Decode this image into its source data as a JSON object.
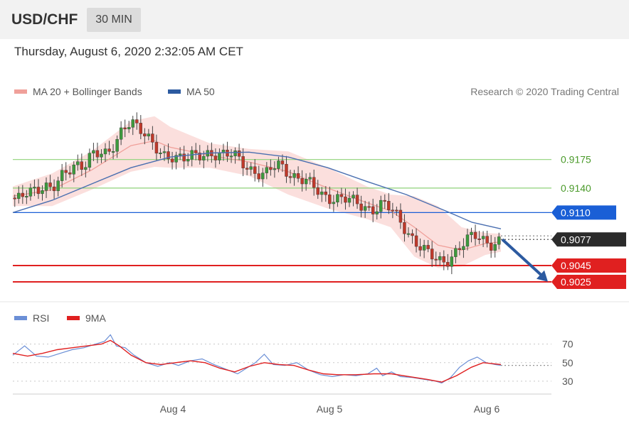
{
  "header": {
    "symbol": "USD/CHF",
    "interval": "30 MIN",
    "datetime": "Thursday, August 6, 2020 2:32:05 AM CET"
  },
  "legend": {
    "ma20_label": "MA 20 + Bollinger Bands",
    "ma50_label": "MA 50",
    "copyright": "Research © 2020 Trading Central",
    "rsi_label": "RSI",
    "rsi_ma_label": "9MA"
  },
  "colors": {
    "band_fill": "#f9d4d2",
    "ma20": "#f0a09a",
    "ma50": "#4a6fb0",
    "candle_up": "#3d9a3d",
    "candle_down": "#c0392b",
    "resistance": "#8fd27a",
    "pivot": "#1a5fd6",
    "support": "#e02020",
    "current": "#2b2b2b",
    "rsi": "#6b8fd6",
    "rsi_ma": "#e02020",
    "arrow": "#2c5aa0"
  },
  "chart_data": [
    {
      "type": "candlestick",
      "name": "price",
      "x_labels": [
        "Aug 4",
        "Aug 5",
        "Aug 6"
      ],
      "y_range": [
        0.9005,
        0.924
      ],
      "resistance_levels": [
        "0.9175",
        "0.9140"
      ],
      "pivot_level": "0.9110",
      "current_price": "0.9077",
      "support_levels": [
        "0.9045",
        "0.9025"
      ],
      "price_path": [
        [
          0,
          0.9128
        ],
        [
          6,
          0.9124
        ],
        [
          12,
          0.9133
        ],
        [
          18,
          0.9137
        ],
        [
          24,
          0.9148
        ],
        [
          30,
          0.9141
        ],
        [
          36,
          0.915
        ],
        [
          42,
          0.9156
        ],
        [
          48,
          0.9168
        ],
        [
          54,
          0.9171
        ],
        [
          60,
          0.9186
        ],
        [
          66,
          0.9181
        ],
        [
          72,
          0.9176
        ],
        [
          78,
          0.9193
        ],
        [
          84,
          0.9218
        ],
        [
          90,
          0.9226
        ],
        [
          96,
          0.9212
        ],
        [
          102,
          0.9198
        ],
        [
          108,
          0.919
        ],
        [
          114,
          0.9184
        ],
        [
          120,
          0.9182
        ],
        [
          126,
          0.9176
        ],
        [
          132,
          0.9172
        ],
        [
          138,
          0.9179
        ],
        [
          144,
          0.9183
        ],
        [
          150,
          0.9186
        ],
        [
          156,
          0.918
        ],
        [
          162,
          0.9177
        ],
        [
          168,
          0.918
        ],
        [
          174,
          0.9176
        ],
        [
          180,
          0.9167
        ],
        [
          186,
          0.9158
        ],
        [
          192,
          0.9152
        ],
        [
          198,
          0.9164
        ],
        [
          204,
          0.9171
        ],
        [
          210,
          0.9162
        ],
        [
          216,
          0.9153
        ],
        [
          222,
          0.9147
        ],
        [
          228,
          0.9141
        ],
        [
          234,
          0.9135
        ],
        [
          240,
          0.9131
        ],
        [
          246,
          0.9129
        ],
        [
          252,
          0.9125
        ],
        [
          258,
          0.9122
        ],
        [
          264,
          0.912
        ],
        [
          270,
          0.9118
        ],
        [
          276,
          0.9116
        ],
        [
          282,
          0.912
        ],
        [
          288,
          0.9112
        ],
        [
          294,
          0.9102
        ],
        [
          300,
          0.909
        ],
        [
          306,
          0.9078
        ],
        [
          312,
          0.9065
        ],
        [
          318,
          0.9055
        ],
        [
          324,
          0.9049
        ],
        [
          330,
          0.9052
        ],
        [
          336,
          0.9062
        ],
        [
          342,
          0.907
        ],
        [
          348,
          0.9076
        ],
        [
          354,
          0.908
        ],
        [
          360,
          0.9076
        ],
        [
          366,
          0.9074
        ],
        [
          372,
          0.9077
        ]
      ],
      "ma20_path": [
        [
          0,
          0.913
        ],
        [
          30,
          0.9138
        ],
        [
          60,
          0.9162
        ],
        [
          90,
          0.9192
        ],
        [
          108,
          0.9198
        ],
        [
          120,
          0.919
        ],
        [
          150,
          0.918
        ],
        [
          180,
          0.9172
        ],
        [
          210,
          0.916
        ],
        [
          240,
          0.914
        ],
        [
          270,
          0.9122
        ],
        [
          288,
          0.9112
        ],
        [
          306,
          0.9092
        ],
        [
          324,
          0.907
        ],
        [
          342,
          0.9064
        ],
        [
          360,
          0.9072
        ],
        [
          372,
          0.9074
        ]
      ],
      "band_upper_path": [
        [
          0,
          0.9142
        ],
        [
          30,
          0.9158
        ],
        [
          60,
          0.9185
        ],
        [
          90,
          0.9222
        ],
        [
          108,
          0.9228
        ],
        [
          120,
          0.9215
        ],
        [
          150,
          0.9195
        ],
        [
          180,
          0.9188
        ],
        [
          210,
          0.9185
        ],
        [
          240,
          0.9165
        ],
        [
          270,
          0.9142
        ],
        [
          288,
          0.9132
        ],
        [
          306,
          0.913
        ],
        [
          324,
          0.9118
        ],
        [
          342,
          0.9092
        ],
        [
          360,
          0.9085
        ],
        [
          372,
          0.9084
        ]
      ],
      "band_lower_path": [
        [
          0,
          0.9118
        ],
        [
          30,
          0.9118
        ],
        [
          60,
          0.9138
        ],
        [
          90,
          0.916
        ],
        [
          108,
          0.9166
        ],
        [
          120,
          0.9165
        ],
        [
          150,
          0.9165
        ],
        [
          180,
          0.9155
        ],
        [
          210,
          0.9132
        ],
        [
          240,
          0.9115
        ],
        [
          270,
          0.9102
        ],
        [
          288,
          0.9092
        ],
        [
          306,
          0.9056
        ],
        [
          324,
          0.9042
        ],
        [
          342,
          0.9044
        ],
        [
          360,
          0.9058
        ],
        [
          372,
          0.9062
        ]
      ],
      "ma50_path": [
        [
          0,
          0.911
        ],
        [
          30,
          0.9125
        ],
        [
          60,
          0.9145
        ],
        [
          90,
          0.9165
        ],
        [
          120,
          0.9178
        ],
        [
          150,
          0.9183
        ],
        [
          180,
          0.9184
        ],
        [
          210,
          0.9178
        ],
        [
          240,
          0.9165
        ],
        [
          270,
          0.9148
        ],
        [
          300,
          0.9132
        ],
        [
          330,
          0.9112
        ],
        [
          350,
          0.9098
        ],
        [
          372,
          0.909
        ]
      ]
    },
    {
      "type": "line",
      "name": "rsi",
      "y_ticks": [
        "70",
        "50",
        "30"
      ],
      "y_range": [
        20,
        85
      ],
      "x_labels": [
        "Aug 4",
        "Aug 5",
        "Aug 6"
      ],
      "series": [
        {
          "name": "RSI",
          "values": [
            [
              0,
              58
            ],
            [
              8,
              68
            ],
            [
              16,
              57
            ],
            [
              24,
              56
            ],
            [
              32,
              60
            ],
            [
              40,
              64
            ],
            [
              48,
              66
            ],
            [
              56,
              70
            ],
            [
              62,
              73
            ],
            [
              66,
              80
            ],
            [
              70,
              68
            ],
            [
              76,
              66
            ],
            [
              82,
              58
            ],
            [
              90,
              50
            ],
            [
              98,
              46
            ],
            [
              106,
              50
            ],
            [
              112,
              47
            ],
            [
              120,
              52
            ],
            [
              128,
              54
            ],
            [
              136,
              48
            ],
            [
              144,
              43
            ],
            [
              152,
              38
            ],
            [
              158,
              44
            ],
            [
              164,
              50
            ],
            [
              170,
              59
            ],
            [
              176,
              48
            ],
            [
              184,
              47
            ],
            [
              192,
              50
            ],
            [
              200,
              42
            ],
            [
              208,
              37
            ],
            [
              216,
              35
            ],
            [
              224,
              37
            ],
            [
              232,
              36
            ],
            [
              240,
              38
            ],
            [
              246,
              44
            ],
            [
              250,
              36
            ],
            [
              256,
              40
            ],
            [
              262,
              35
            ],
            [
              270,
              34
            ],
            [
              278,
              32
            ],
            [
              286,
              30
            ],
            [
              290,
              28
            ],
            [
              296,
              34
            ],
            [
              302,
              45
            ],
            [
              308,
              52
            ],
            [
              314,
              56
            ],
            [
              320,
              50
            ],
            [
              326,
              48
            ],
            [
              330,
              47
            ]
          ]
        },
        {
          "name": "9MA",
          "values": [
            [
              0,
              60
            ],
            [
              10,
              57
            ],
            [
              20,
              60
            ],
            [
              30,
              64
            ],
            [
              40,
              66
            ],
            [
              50,
              68
            ],
            [
              60,
              70
            ],
            [
              66,
              74
            ],
            [
              72,
              68
            ],
            [
              80,
              58
            ],
            [
              90,
              50
            ],
            [
              100,
              48
            ],
            [
              110,
              50
            ],
            [
              120,
              52
            ],
            [
              130,
              50
            ],
            [
              140,
              44
            ],
            [
              150,
              40
            ],
            [
              160,
              46
            ],
            [
              170,
              50
            ],
            [
              180,
              48
            ],
            [
              190,
              47
            ],
            [
              200,
              42
            ],
            [
              210,
              38
            ],
            [
              220,
              37
            ],
            [
              232,
              37
            ],
            [
              244,
              38
            ],
            [
              256,
              38
            ],
            [
              268,
              35
            ],
            [
              280,
              32
            ],
            [
              290,
              29
            ],
            [
              300,
              36
            ],
            [
              310,
              45
            ],
            [
              318,
              50
            ],
            [
              330,
              48
            ]
          ]
        }
      ]
    }
  ]
}
